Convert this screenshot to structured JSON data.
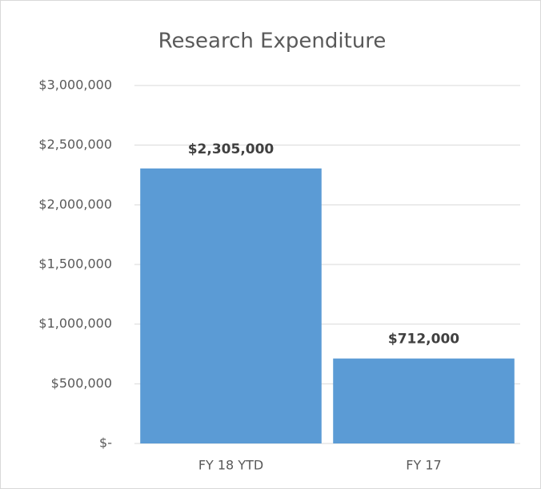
{
  "chart_data": {
    "type": "bar",
    "title": "Research Expenditure",
    "categories": [
      "FY 18 YTD",
      "FY 17"
    ],
    "values": [
      2305000,
      712000
    ],
    "value_labels": [
      "$2,305,000",
      "$712,000"
    ],
    "color": "#5b9bd5",
    "ylim": [
      0,
      3000000
    ],
    "yticks": [
      {
        "value": 0,
        "label": "$-"
      },
      {
        "value": 500000,
        "label": "$500,000"
      },
      {
        "value": 1000000,
        "label": "$1,000,000"
      },
      {
        "value": 1500000,
        "label": "$1,500,000"
      },
      {
        "value": 2000000,
        "label": "$2,000,000"
      },
      {
        "value": 2500000,
        "label": "$2,500,000"
      },
      {
        "value": 3000000,
        "label": "$3,000,000"
      }
    ],
    "grid": true
  }
}
